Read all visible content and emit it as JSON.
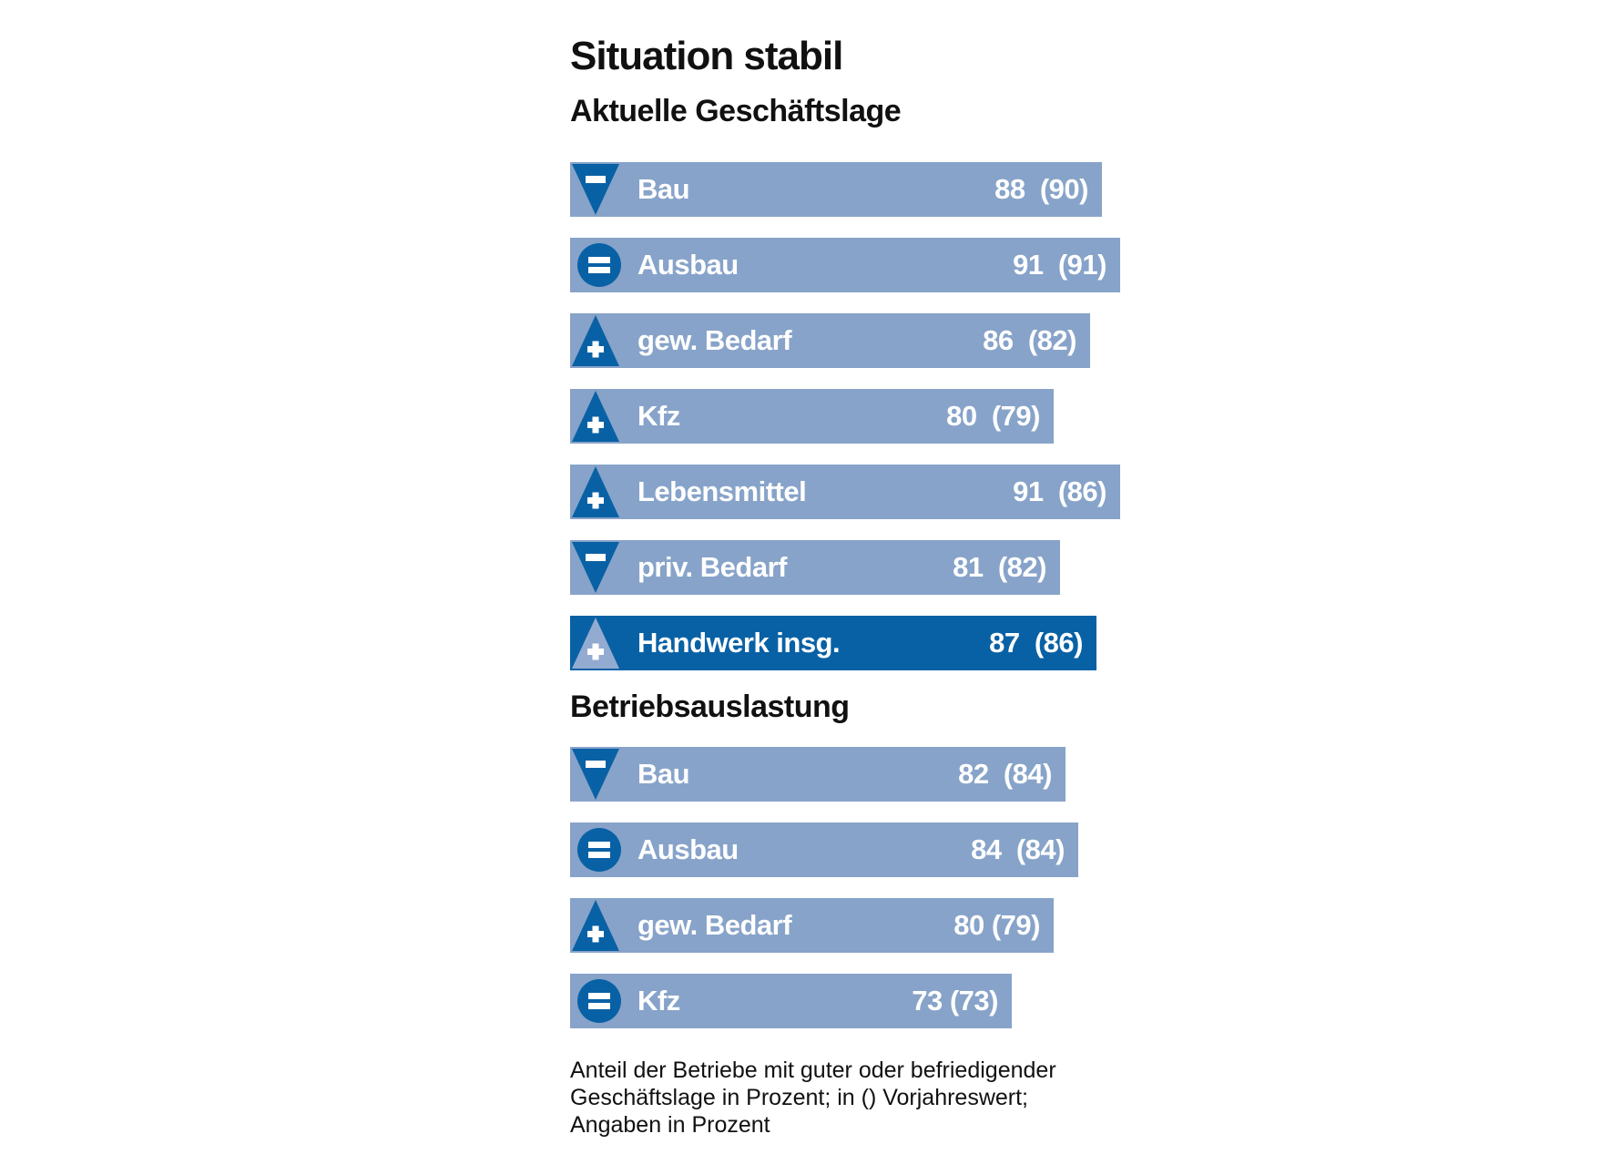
{
  "title": "Situation stabil",
  "colors": {
    "bar_light": "#87a3c9",
    "bar_dark": "#0961a5",
    "icon_dark": "#0961a5",
    "icon_light_on_dark": "#93abd1",
    "text_on_bar": "#ffffff",
    "heading_text": "#111111"
  },
  "trend_icon_names": {
    "down": "triangle-down-minus-icon",
    "up": "triangle-up-plus-icon",
    "equal": "circle-equals-icon"
  },
  "chart_data": {
    "type": "bar",
    "orientation": "horizontal",
    "title": "Situation stabil",
    "unit": "Prozent",
    "value_note": "in () Vorjahreswert",
    "sections": [
      {
        "heading": "Aktuelle Geschäftslage",
        "bars": [
          {
            "label": "Bau",
            "value": 88,
            "prev": 90,
            "trend": "down",
            "display": "88  (90)",
            "style": "light"
          },
          {
            "label": "Ausbau",
            "value": 91,
            "prev": 91,
            "trend": "equal",
            "display": "91  (91)",
            "style": "light"
          },
          {
            "label": "gew. Bedarf",
            "value": 86,
            "prev": 82,
            "trend": "up",
            "display": "86  (82)",
            "style": "light"
          },
          {
            "label": "Kfz",
            "value": 80,
            "prev": 79,
            "trend": "up",
            "display": "80  (79)",
            "style": "light"
          },
          {
            "label": "Lebensmittel",
            "value": 91,
            "prev": 86,
            "trend": "up",
            "display": "91  (86)",
            "style": "light"
          },
          {
            "label": "priv. Bedarf",
            "value": 81,
            "prev": 82,
            "trend": "down",
            "display": "81  (82)",
            "style": "light"
          },
          {
            "label": "Handwerk insg.",
            "value": 87,
            "prev": 86,
            "trend": "up",
            "display": "87  (86)",
            "style": "dark"
          }
        ]
      },
      {
        "heading": "Betriebsauslastung",
        "bars": [
          {
            "label": "Bau",
            "value": 82,
            "prev": 84,
            "trend": "down",
            "display": "82  (84)",
            "style": "light"
          },
          {
            "label": "Ausbau",
            "value": 84,
            "prev": 84,
            "trend": "equal",
            "display": "84  (84)",
            "style": "light"
          },
          {
            "label": "gew. Bedarf",
            "value": 80,
            "prev": 79,
            "trend": "up",
            "display": "80 (79)",
            "style": "light"
          },
          {
            "label": "Kfz",
            "value": 73,
            "prev": 73,
            "trend": "equal",
            "display": "73 (73)",
            "style": "light"
          }
        ]
      }
    ],
    "xlim": [
      0,
      100
    ],
    "grid": false,
    "legend": false
  },
  "footnote_lines": [
    "Anteil der Betriebe mit guter oder befriedigender",
    "Geschäftslage in Prozent; in () Vorjahreswert;",
    "Angaben in Prozent"
  ]
}
